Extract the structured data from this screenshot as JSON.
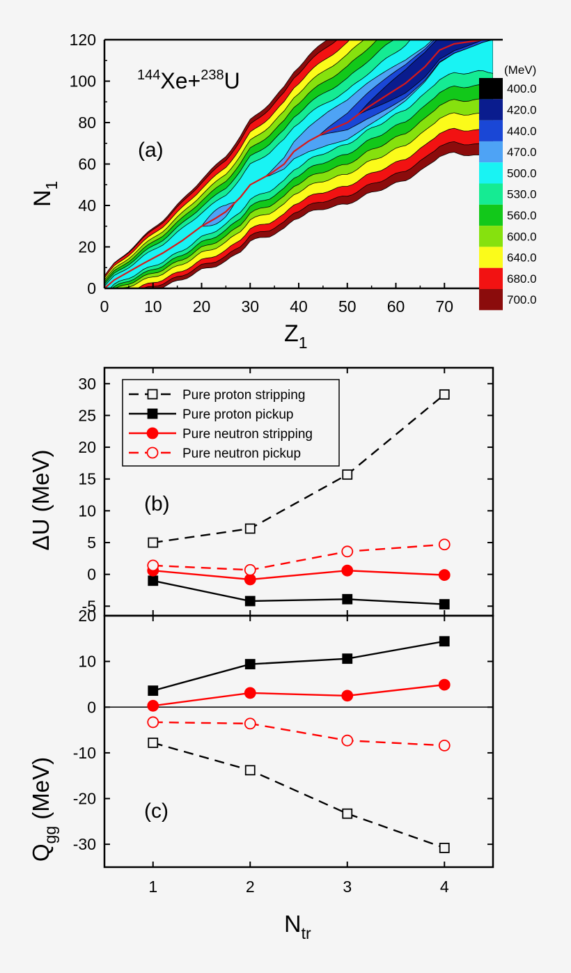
{
  "chart_data": [
    {
      "type": "heatmap",
      "panel_label": "(a)",
      "reaction": {
        "a1": "144",
        "e1": "Xe+",
        "a2": "238",
        "e2": "U"
      },
      "xlabel": {
        "main": "Z",
        "sub": "1"
      },
      "ylabel": {
        "main": "N",
        "sub": "1"
      },
      "xlim": [
        0,
        80
      ],
      "ylim": [
        0,
        120
      ],
      "xticks": [
        0,
        10,
        20,
        30,
        40,
        50,
        60,
        70
      ],
      "yticks": [
        0,
        20,
        40,
        60,
        80,
        100,
        120
      ],
      "colorbar": {
        "unit": "(MeV)",
        "levels": [
          {
            "label": "400.0",
            "color": "#000000"
          },
          {
            "label": "420.0",
            "color": "#0a1c8e"
          },
          {
            "label": "440.0",
            "color": "#1a47d6"
          },
          {
            "label": "470.0",
            "color": "#4ea3f5"
          },
          {
            "label": "500.0",
            "color": "#19f3f3"
          },
          {
            "label": "530.0",
            "color": "#15eb93"
          },
          {
            "label": "560.0",
            "color": "#12c81a"
          },
          {
            "label": "600.0",
            "color": "#86e10e"
          },
          {
            "label": "640.0",
            "color": "#fbfb1a"
          },
          {
            "label": "680.0",
            "color": "#f21212"
          },
          {
            "label": "700.0",
            "color": "#8b0c0c"
          }
        ]
      },
      "valley_line": [
        [
          0,
          0
        ],
        [
          2,
          4
        ],
        [
          5,
          8
        ],
        [
          8,
          12
        ],
        [
          12,
          17
        ],
        [
          16,
          23
        ],
        [
          20,
          30
        ],
        [
          23,
          34
        ],
        [
          25,
          37
        ],
        [
          28,
          44
        ],
        [
          30,
          50
        ],
        [
          34,
          55
        ],
        [
          37,
          60
        ],
        [
          39,
          66
        ],
        [
          42,
          71
        ],
        [
          46,
          76
        ],
        [
          50,
          80
        ],
        [
          54,
          87
        ],
        [
          58,
          93
        ],
        [
          62,
          99
        ],
        [
          66,
          107
        ],
        [
          69,
          115
        ],
        [
          72,
          118
        ],
        [
          78,
          120
        ]
      ]
    },
    {
      "type": "line",
      "panel_label": "(b)",
      "xlabel": "",
      "ylabel": "ΔU (MeV)",
      "ylim": [
        -6.5,
        32.5
      ],
      "yticks": [
        -5,
        0,
        5,
        10,
        15,
        20,
        25,
        30
      ],
      "categories": [
        1,
        2,
        3,
        4
      ],
      "series": [
        {
          "name": "Pure proton stripping",
          "values": [
            5.0,
            7.2,
            15.7,
            28.3
          ],
          "color": "#000000",
          "dash": true,
          "marker": "square",
          "filled": false
        },
        {
          "name": "Pure proton pickup",
          "values": [
            -1.0,
            -4.2,
            -3.9,
            -4.7
          ],
          "color": "#000000",
          "dash": false,
          "marker": "square",
          "filled": true
        },
        {
          "name": "Pure neutron stripping",
          "values": [
            0.6,
            -0.8,
            0.6,
            -0.1
          ],
          "color": "#ff0000",
          "dash": false,
          "marker": "circle",
          "filled": true
        },
        {
          "name": "Pure neutron pickup",
          "values": [
            1.4,
            0.7,
            3.6,
            4.7
          ],
          "color": "#ff0000",
          "dash": true,
          "marker": "circle",
          "filled": false
        }
      ]
    },
    {
      "type": "line",
      "panel_label": "(c)",
      "xlabel": {
        "main": "N",
        "sub": "tr"
      },
      "ylabel": {
        "main": "Q",
        "sub": "gg",
        "unit": " (MeV)"
      },
      "xlim": [
        0.5,
        4.5
      ],
      "ylim": [
        -35,
        20
      ],
      "yticks": [
        -30,
        -20,
        -10,
        0,
        10,
        20
      ],
      "xticks": [
        1,
        2,
        3,
        4
      ],
      "zero_line": true,
      "categories": [
        1,
        2,
        3,
        4
      ],
      "series": [
        {
          "name": "Pure proton stripping",
          "values": [
            -7.8,
            -13.8,
            -23.3,
            -30.8
          ],
          "color": "#000000",
          "dash": true,
          "marker": "square",
          "filled": false
        },
        {
          "name": "Pure proton pickup",
          "values": [
            3.6,
            9.4,
            10.6,
            14.4
          ],
          "color": "#000000",
          "dash": false,
          "marker": "square",
          "filled": true
        },
        {
          "name": "Pure neutron stripping",
          "values": [
            0.3,
            3.1,
            2.5,
            4.9
          ],
          "color": "#ff0000",
          "dash": false,
          "marker": "circle",
          "filled": true
        },
        {
          "name": "Pure neutron pickup",
          "values": [
            -3.3,
            -3.6,
            -7.3,
            -8.4
          ],
          "color": "#ff0000",
          "dash": true,
          "marker": "circle",
          "filled": false
        }
      ]
    }
  ]
}
